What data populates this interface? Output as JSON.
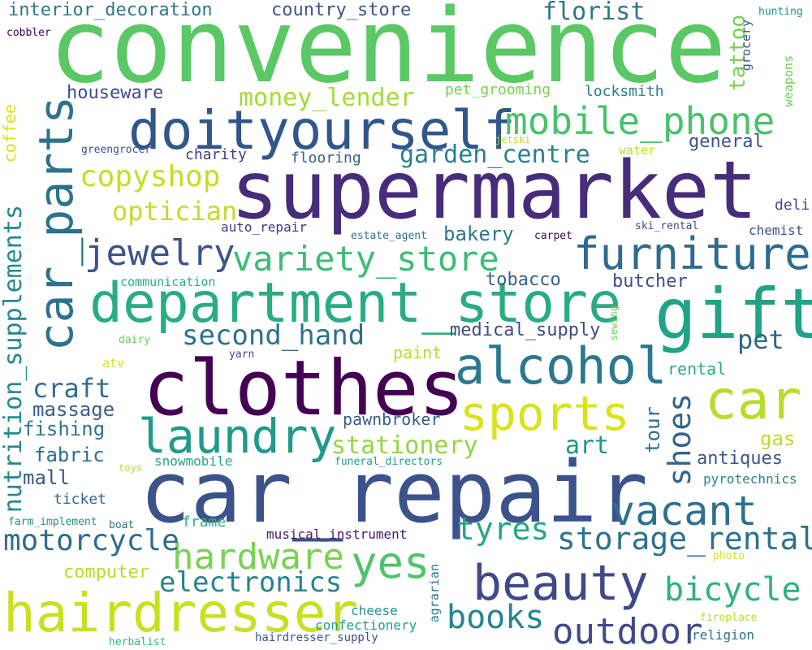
{
  "palette": {
    "c1": "#440154",
    "c2": "#482878",
    "c3": "#3e4a89",
    "c4": "#31688e",
    "c5": "#26828e",
    "c6": "#1f9e89",
    "c7": "#35b779",
    "c8": "#6ece58",
    "c9": "#b5de2b",
    "c10": "#d8e219"
  },
  "words": {
    "convenience": "convenience",
    "supermarket": "supermarket",
    "car_repair": "car_repair",
    "clothes": "clothes",
    "department_store": "department_store",
    "doityourself": "doityourself",
    "car_parts": "car_parts",
    "gift": "gift",
    "hairdresser": "hairdresser",
    "alcohol": "alcohol",
    "car": "car",
    "furniture": "furniture",
    "beauty": "beauty",
    "laundry": "laundry",
    "sports": "sports",
    "mobile_phone": "mobile_phone",
    "vacant": "vacant",
    "jewelry": "jewelry",
    "yes": "yes",
    "variety_store": "variety_store",
    "outdoor": "outdoor",
    "hardware": "hardware",
    "storage_rental": "storage_rental",
    "motorcycle": "motorcycle",
    "bicycle": "bicycle",
    "books": "books",
    "nutrition_supplements": "nutrition_supplements",
    "copyshop": "copyshop",
    "tyres": "tyres",
    "electronics": "electronics",
    "optician": "optician",
    "second_hand": "second_hand",
    "shoes": "shoes",
    "garden_centre": "garden_centre",
    "money_lender": "money_lender",
    "craft": "craft",
    "stationery": "stationery",
    "florist": "florist",
    "pet": "pet",
    "art": "art",
    "interior_decoration": "interior_decoration",
    "tattoo": "tattoo",
    "massage": "massage",
    "fishing": "fishing",
    "fabric": "fabric",
    "mall": "mall",
    "houseware": "houseware",
    "country_store": "country_store",
    "bakery": "bakery",
    "tobacco": "tobacco",
    "butcher": "butcher",
    "medical_supply": "medical_supply",
    "antiques": "antiques",
    "pawnbroker": "pawnbroker",
    "computer": "computer",
    "general": "general",
    "gas": "gas",
    "tour": "tour",
    "coffee": "coffee",
    "paint": "paint",
    "rental": "rental",
    "locksmith": "locksmith",
    "pet_grooming": "pet_grooming",
    "ticket": "ticket",
    "frame": "frame",
    "charity": "charity",
    "flooring": "flooring",
    "musical_instrument": "musical_instrument",
    "auto_repair": "auto_repair",
    "cheese": "cheese",
    "confectionery": "confectionery",
    "deli": "deli",
    "chemist": "chemist",
    "snowmobile": "snowmobile",
    "pyrotechnics": "pyrotechnics",
    "religion": "religion",
    "communication": "communication",
    "grocery": "grocery",
    "weapons": "weapons",
    "agrarian": "agrarian",
    "water": "water",
    "hunting": "hunting",
    "hairdresser_supply": "hairdresser_supply",
    "cobbler": "cobbler",
    "greengrocer": "greengrocer",
    "estate_agent": "estate_agent",
    "ski_rental": "ski_rental",
    "carpet": "carpet",
    "jetski": "jetski",
    "funeral_directors": "funeral_directors",
    "farm_implement": "farm_implement",
    "boat": "boat",
    "toys": "toys",
    "dairy": "dairy",
    "yarn": "yarn",
    "atv": "atv",
    "sewing": "sewing",
    "fireplace": "fireplace",
    "photo": "photo",
    "herbalist": "herbalist"
  }
}
